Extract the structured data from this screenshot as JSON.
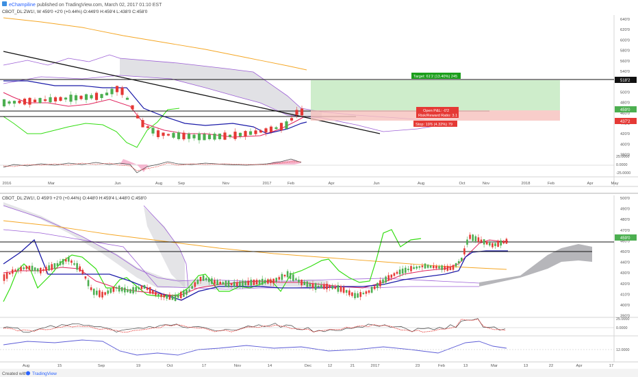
{
  "header": {
    "author": "eChampiline",
    "published": "published on TradingView.com, March 02, 2017 01:10 EST"
  },
  "weekly": {
    "symbol_line": "CBOT_DL:ZW1!, W  459'0  +2'0 (+0.44%)  O:449'0  H:459'4  L:438'0  C:458'0",
    "price_ticks": [
      "640'0",
      "620'0",
      "600'0",
      "580'0",
      "560'0",
      "540'0",
      "520'0",
      "500'0",
      "480'0",
      "460'0",
      "440'0",
      "420'0",
      "400'0",
      "380'0"
    ],
    "osc_ticks": [
      "25.0000",
      "0.0000",
      "-25.0000"
    ],
    "time_labels": [
      "2016",
      "Mar",
      "Jun",
      "Aug",
      "Sep",
      "Nov",
      "2017",
      "Feb",
      "Apr",
      "Jun",
      "Aug",
      "Oct",
      "Nov",
      "2018",
      "Feb",
      "Apr",
      "May"
    ],
    "target_label": "Target: 61'2 (13.40%) 245",
    "pnl_label": "Open P&L: -0'2",
    "rr_label": "Risk/Reward Ratio: 3.1",
    "stop_label": "Stop: 19'6 (4.32%) 79",
    "badge_resistance": "518'2",
    "badge_price": "459'0",
    "badge_stop": "437'2"
  },
  "daily": {
    "symbol_line": "CBOT_DL:ZW1!, D  459'0  +2'0 (+0.44%)  O:448'0  H:459'4  L:448'0  C:458'0",
    "price_ticks": [
      "500'0",
      "490'0",
      "480'0",
      "470'0",
      "460'0",
      "450'0",
      "440'0",
      "430'0",
      "420'0",
      "410'0",
      "400'0",
      "390'0"
    ],
    "osc1_ticks": [
      "25.0000",
      "0.0000"
    ],
    "osc2_ticks": [
      "12.0000"
    ],
    "time_labels": [
      "Aug",
      "15",
      "Sep",
      "19",
      "Oct",
      "17",
      "Nov",
      "14",
      "Dec",
      "12",
      "21",
      "2017",
      "23",
      "Feb",
      "13",
      "Mar",
      "13",
      "22",
      "Apr",
      "17"
    ],
    "badge_price": "459'0"
  },
  "footer": {
    "created_with": "Created with",
    "brand": "TradingView"
  },
  "colors": {
    "up": "#4caf50",
    "down": "#e53935",
    "kijun": "#1a1aa8",
    "tenkan": "#e0245e",
    "chikou": "#33dd11",
    "cloud_edge": "#9c5fd6",
    "ma": "#f5a623"
  }
}
